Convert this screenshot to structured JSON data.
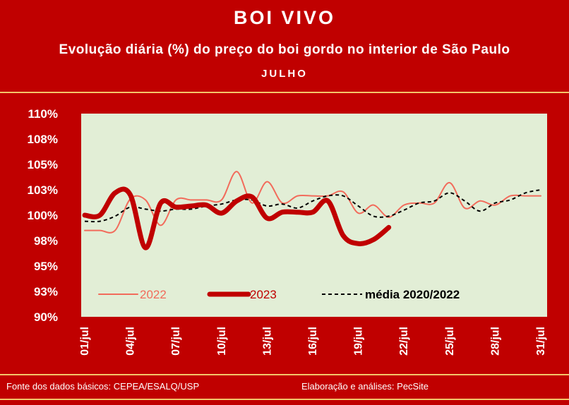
{
  "header": {
    "title": "BOI VIVO",
    "subtitle": "Evolução diária (%) do preço do boi gordo no interior de São Paulo",
    "month": "JULHO"
  },
  "footer": {
    "source": "Fonte dos dados básicos: CEPEA/ESALQ/USP",
    "credit": "Elaboração e análises: PecSite"
  },
  "colors": {
    "background": "#c00000",
    "plot_area": "#e2eed6",
    "series_2022": "#f26b5b",
    "series_2023": "#c00000",
    "series_media": "#000000",
    "separator": "#f3c56a"
  },
  "chart_data": {
    "type": "line",
    "title": "",
    "xlabel": "",
    "ylabel": "",
    "x_range": [
      1,
      31
    ],
    "ylim": [
      90,
      110
    ],
    "y_ticks": [
      {
        "value": 90,
        "label": "90%"
      },
      {
        "value": 92.5,
        "label": "93%"
      },
      {
        "value": 95,
        "label": "95%"
      },
      {
        "value": 97.5,
        "label": "98%"
      },
      {
        "value": 100,
        "label": "100%"
      },
      {
        "value": 102.5,
        "label": "103%"
      },
      {
        "value": 105,
        "label": "105%"
      },
      {
        "value": 107.5,
        "label": "108%"
      },
      {
        "value": 110,
        "label": "110%"
      }
    ],
    "x_ticks": [
      {
        "day": 1,
        "label": "01/jul"
      },
      {
        "day": 4,
        "label": "04/jul"
      },
      {
        "day": 7,
        "label": "07/jul"
      },
      {
        "day": 10,
        "label": "10/jul"
      },
      {
        "day": 13,
        "label": "13/jul"
      },
      {
        "day": 16,
        "label": "16/jul"
      },
      {
        "day": 19,
        "label": "19/jul"
      },
      {
        "day": 22,
        "label": "22/jul"
      },
      {
        "day": 25,
        "label": "25/jul"
      },
      {
        "day": 28,
        "label": "28/jul"
      },
      {
        "day": 31,
        "label": "31/jul"
      }
    ],
    "grid": false,
    "legend": "bottom",
    "series": [
      {
        "name": "2022",
        "x": [
          1,
          2,
          3,
          4,
          5,
          6,
          7,
          8,
          9,
          10,
          11,
          12,
          13,
          14,
          15,
          16,
          17,
          18,
          19,
          20,
          21,
          22,
          23,
          24,
          25,
          26,
          27,
          28,
          29,
          30,
          31
        ],
        "values": [
          98.5,
          98.5,
          98.5,
          101.6,
          101.5,
          99.0,
          101.5,
          101.5,
          101.5,
          101.5,
          104.3,
          101.2,
          103.3,
          101.2,
          101.9,
          101.9,
          101.9,
          102.3,
          100.2,
          101.0,
          99.8,
          101.0,
          101.2,
          101.2,
          103.2,
          100.7,
          101.4,
          101.0,
          101.9,
          101.9,
          101.9
        ]
      },
      {
        "name": "2023",
        "x": [
          1,
          2,
          3,
          4,
          5,
          6,
          7,
          8,
          9,
          10,
          11,
          12,
          13,
          14,
          15,
          16,
          17,
          18,
          19,
          20,
          21
        ],
        "values": [
          100.0,
          100.0,
          102.2,
          102.0,
          96.8,
          101.2,
          100.8,
          100.9,
          101.0,
          100.2,
          101.4,
          101.8,
          99.7,
          100.3,
          100.3,
          100.3,
          101.4,
          98.0,
          97.2,
          97.6,
          98.8
        ]
      },
      {
        "name": "média 2020/2022",
        "x": [
          1,
          2,
          3,
          4,
          5,
          6,
          7,
          8,
          9,
          10,
          11,
          12,
          13,
          14,
          15,
          16,
          17,
          18,
          19,
          20,
          21,
          22,
          23,
          24,
          25,
          26,
          27,
          28,
          29,
          30,
          31
        ],
        "values": [
          99.4,
          99.4,
          99.9,
          100.8,
          100.6,
          100.4,
          100.6,
          100.6,
          100.9,
          101.1,
          101.5,
          101.5,
          100.9,
          101.1,
          100.7,
          101.4,
          101.9,
          101.9,
          100.9,
          99.9,
          99.9,
          100.5,
          101.2,
          101.4,
          102.2,
          101.4,
          100.4,
          101.2,
          101.5,
          102.2,
          102.5
        ]
      }
    ]
  }
}
